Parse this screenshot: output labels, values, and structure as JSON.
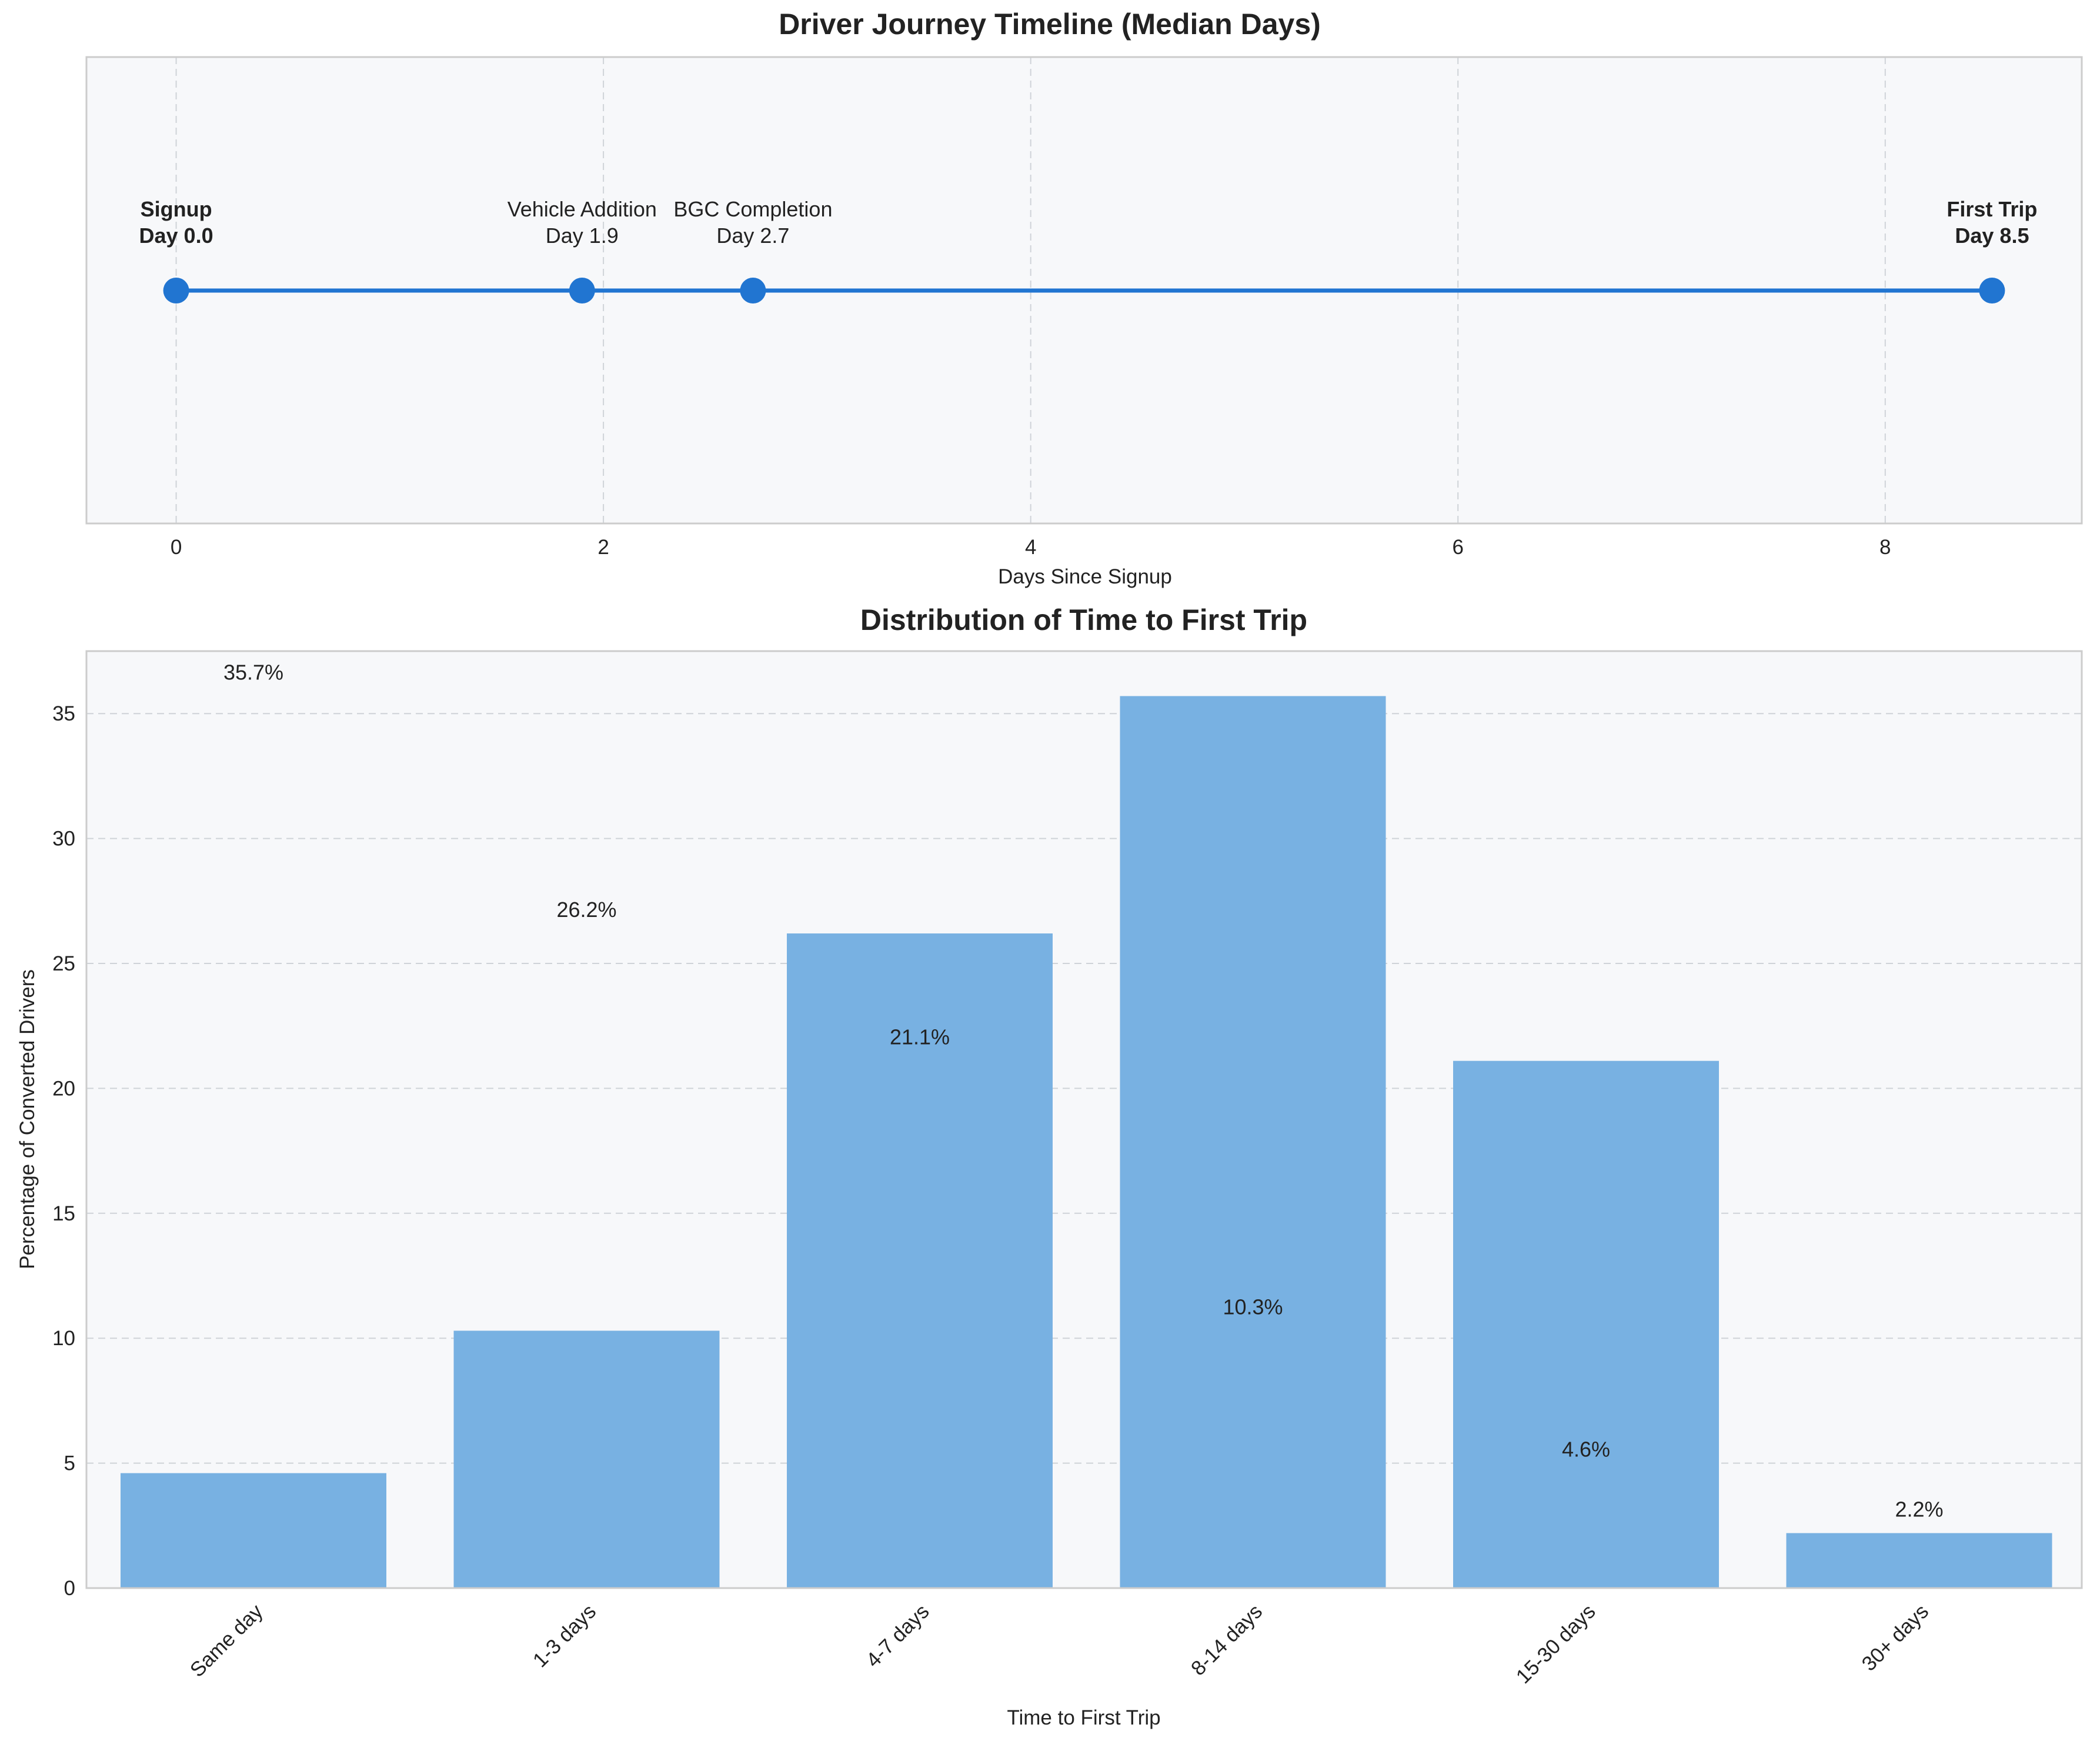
{
  "colors": {
    "background": "#ffffff",
    "axes_face": "#f7f8fa",
    "axes_edge": "#cccccc",
    "grid": "#cfd3d8",
    "timeline_line": "#2175d1",
    "bar_fill": "#78b1e2",
    "text": "#222222"
  },
  "chart_data": [
    {
      "type": "line",
      "title": "Driver Journey Timeline (Median Days)",
      "xlabel": "Days Since Signup",
      "ylabel": "",
      "xlim": [
        -0.42,
        8.92
      ],
      "xticks": [
        0,
        2,
        4,
        6,
        8
      ],
      "grid": true,
      "points": [
        {
          "name": "Signup",
          "day": 0.0,
          "label_line1": "Signup",
          "label_line2": "Day 0.0",
          "bold": true
        },
        {
          "name": "Vehicle Addition",
          "day": 1.9,
          "label_line1": "Vehicle Addition",
          "label_line2": "Day 1.9",
          "bold": false
        },
        {
          "name": "BGC Completion",
          "day": 2.7,
          "label_line1": "BGC Completion",
          "label_line2": "Day 2.7",
          "bold": false
        },
        {
          "name": "First Trip",
          "day": 8.5,
          "label_line1": "First Trip",
          "label_line2": "Day 8.5",
          "bold": true
        }
      ]
    },
    {
      "type": "bar",
      "title": "Distribution of Time to First Trip",
      "xlabel": "Time to First Trip",
      "ylabel": "Percentage of Converted Drivers",
      "ylim": [
        0,
        37.5
      ],
      "yticks": [
        0,
        5,
        10,
        15,
        20,
        25,
        30,
        35
      ],
      "grid": true,
      "categories": [
        "Same day",
        "1-3 days",
        "4-7 days",
        "8-14 days",
        "15-30 days",
        "30+ days"
      ],
      "values": [
        4.6,
        10.3,
        26.2,
        35.7,
        21.1,
        2.2
      ],
      "data_labels": [
        {
          "text": "35.7%",
          "anchor_value": 35.7
        },
        {
          "text": "26.2%",
          "anchor_value": 26.2
        },
        {
          "text": "21.1%",
          "anchor_value": 21.1
        },
        {
          "text": "10.3%",
          "anchor_value": 10.3
        },
        {
          "text": "4.6%",
          "anchor_value": 4.6
        },
        {
          "text": "2.2%",
          "anchor_value": 2.2
        }
      ]
    }
  ]
}
